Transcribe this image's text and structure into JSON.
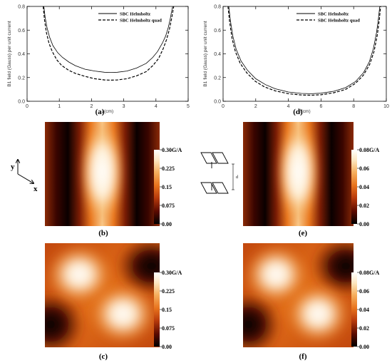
{
  "chart_data": [
    {
      "id": "a",
      "type": "line",
      "panel_label": "(a)",
      "xlabel": "z(cm)",
      "ylabel": "B1 field (Gauss) per unit current",
      "xlim": [
        0,
        5
      ],
      "ylim": [
        0,
        0.8
      ],
      "xticks": [
        0,
        1,
        2,
        3,
        4,
        5
      ],
      "yticks": [
        0.0,
        0.2,
        0.4,
        0.6,
        0.8
      ],
      "legend_position": "top-right",
      "grid": false,
      "series": [
        {
          "name": "SBC Helmholtz",
          "style": "solid",
          "x": [
            0.52,
            0.56,
            0.62,
            0.7,
            0.8,
            0.95,
            1.1,
            1.3,
            1.5,
            1.8,
            2.1,
            2.4,
            2.6,
            2.8,
            3.1,
            3.4,
            3.7,
            3.9,
            4.05,
            4.2,
            4.3,
            4.38,
            4.44,
            4.48,
            4.52
          ],
          "y": [
            0.8,
            0.71,
            0.62,
            0.54,
            0.47,
            0.41,
            0.37,
            0.33,
            0.3,
            0.27,
            0.255,
            0.245,
            0.243,
            0.245,
            0.255,
            0.28,
            0.32,
            0.37,
            0.42,
            0.49,
            0.55,
            0.62,
            0.69,
            0.75,
            0.8
          ]
        },
        {
          "name": "SBC Helmholtz quad",
          "style": "dashed",
          "x": [
            0.5,
            0.54,
            0.6,
            0.68,
            0.78,
            0.92,
            1.08,
            1.3,
            1.5,
            1.8,
            2.1,
            2.4,
            2.6,
            2.8,
            3.1,
            3.4,
            3.7,
            3.9,
            4.08,
            4.22,
            4.33,
            4.42,
            4.48,
            4.52,
            4.55
          ],
          "y": [
            0.8,
            0.69,
            0.58,
            0.49,
            0.42,
            0.35,
            0.3,
            0.26,
            0.235,
            0.21,
            0.19,
            0.18,
            0.178,
            0.18,
            0.19,
            0.215,
            0.25,
            0.3,
            0.36,
            0.44,
            0.52,
            0.61,
            0.69,
            0.75,
            0.8
          ]
        }
      ]
    },
    {
      "id": "d",
      "type": "line",
      "panel_label": "(d)",
      "xlabel": "z(cm)",
      "ylabel": "B1 field (Gauss) per unit current",
      "xlim": [
        0,
        10
      ],
      "ylim": [
        0,
        0.8
      ],
      "xticks": [
        0,
        2,
        4,
        6,
        8,
        10
      ],
      "yticks": [
        0.0,
        0.2,
        0.4,
        0.6,
        0.8
      ],
      "legend_position": "top-right",
      "grid": false,
      "series": [
        {
          "name": "SBC Helmholtz",
          "style": "solid",
          "x": [
            0.35,
            0.45,
            0.6,
            0.8,
            1.1,
            1.5,
            2.0,
            2.6,
            3.2,
            4.0,
            4.8,
            5.4,
            6.0,
            6.8,
            7.5,
            8.1,
            8.6,
            8.95,
            9.2,
            9.4,
            9.52,
            9.6
          ],
          "y": [
            0.8,
            0.68,
            0.55,
            0.44,
            0.34,
            0.26,
            0.19,
            0.14,
            0.105,
            0.078,
            0.066,
            0.064,
            0.068,
            0.085,
            0.115,
            0.165,
            0.24,
            0.33,
            0.44,
            0.58,
            0.7,
            0.8
          ]
        },
        {
          "name": "SBC Helmholtz quad",
          "style": "dashed",
          "x": [
            0.3,
            0.4,
            0.55,
            0.75,
            1.05,
            1.45,
            1.95,
            2.55,
            3.2,
            4.0,
            4.8,
            5.4,
            6.0,
            6.8,
            7.5,
            8.1,
            8.6,
            8.98,
            9.25,
            9.45,
            9.57,
            9.65
          ],
          "y": [
            0.8,
            0.67,
            0.53,
            0.42,
            0.32,
            0.24,
            0.17,
            0.12,
            0.088,
            0.064,
            0.053,
            0.051,
            0.055,
            0.072,
            0.1,
            0.15,
            0.22,
            0.31,
            0.42,
            0.56,
            0.69,
            0.8
          ]
        }
      ]
    },
    {
      "id": "b",
      "type": "heatmap",
      "panel_label": "(b)",
      "pattern": "vertical-lobe",
      "colorbar_ticks": [
        "0.30G/A",
        "0.225",
        "0.15",
        "0.075",
        "0.00"
      ]
    },
    {
      "id": "e1",
      "type": "heatmap",
      "panel_label": "(e)",
      "pattern": "vertical-lobe",
      "colorbar_ticks": [
        "0.08G/A",
        "0.06",
        "0.04",
        "0.02",
        "0.00"
      ]
    },
    {
      "id": "c",
      "type": "heatmap",
      "panel_label": "(c)",
      "pattern": "diagonal-lobes",
      "colorbar_ticks": [
        "0.30G/A",
        "0.225",
        "0.15",
        "0.075",
        "0.00"
      ]
    },
    {
      "id": "f",
      "type": "heatmap",
      "panel_label": "(f)",
      "pattern": "diagonal-lobes",
      "colorbar_ticks": [
        "0.08G/A",
        "0.06",
        "0.04",
        "0.02",
        "0.00"
      ]
    }
  ],
  "axes_icon": {
    "y_label": "y",
    "x_label": "x"
  },
  "coil_sketch": {
    "dimension_label": "d"
  },
  "colormap": [
    "#000000",
    "#5a0a00",
    "#b83a0c",
    "#e8741e",
    "#f6b060",
    "#fde7c2",
    "#ffffff"
  ]
}
